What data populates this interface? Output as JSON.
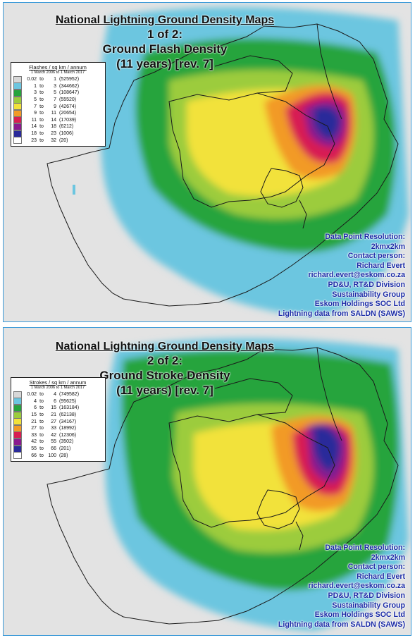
{
  "map_title": "National Lightning Ground Density Maps",
  "colors": {
    "sea": "#e3e3e3",
    "land": "#ffffff",
    "border": "#3a9ad8",
    "info_text": "#1a2aa6"
  },
  "panels": [
    {
      "id": "flash",
      "subtitle_1": "1 of 2:",
      "subtitle_2": "Ground Flash Density",
      "subtitle_3": "(11 years) [rev. 7]",
      "legend": {
        "header": "Flashes / sq km / annum",
        "period": "1 March 2006 to 1 March 2017",
        "items": [
          {
            "lo": "0.02",
            "to": "to",
            "hi": "1",
            "count": "(525952)",
            "color": "#d8d8d8"
          },
          {
            "lo": "1",
            "to": "to",
            "hi": "3",
            "count": "(344662)",
            "color": "#6cc6e0"
          },
          {
            "lo": "3",
            "to": "to",
            "hi": "5",
            "count": "(108647)",
            "color": "#25a43c"
          },
          {
            "lo": "5",
            "to": "to",
            "hi": "7",
            "count": "(55520)",
            "color": "#9ccc3c"
          },
          {
            "lo": "7",
            "to": "to",
            "hi": "9",
            "count": "(42674)",
            "color": "#f2e23a"
          },
          {
            "lo": "9",
            "to": "to",
            "hi": "11",
            "count": "(20654)",
            "color": "#f29a26"
          },
          {
            "lo": "11",
            "to": "to",
            "hi": "14",
            "count": "(17039)",
            "color": "#d81e52"
          },
          {
            "lo": "14",
            "to": "to",
            "hi": "18",
            "count": "(6212)",
            "color": "#8a1a8e"
          },
          {
            "lo": "18",
            "to": "to",
            "hi": "23",
            "count": "(1006)",
            "color": "#2a2a9a"
          },
          {
            "lo": "23",
            "to": "to",
            "hi": "32",
            "count": "(20)",
            "color": "#ffffff"
          }
        ]
      },
      "info": [
        "Data Point Resolution:",
        "2kmx2km",
        "Contact person:",
        "Richard Evert",
        "richard.evert@eskom.co.za",
        "PD&U, RT&D Division",
        "Sustainability Group",
        "Eskom Holdings SOC Ltd",
        "Lightning data from SALDN (SAWS)"
      ]
    },
    {
      "id": "stroke",
      "subtitle_1": "2 of 2:",
      "subtitle_2": "Ground Stroke Density",
      "subtitle_3": "(11 years) [rev. 7]",
      "legend": {
        "header": "Strokes / sq km / annum",
        "period": "1 March 2006 to 1 March 2017",
        "items": [
          {
            "lo": "0.02",
            "to": "to",
            "hi": "4",
            "count": "(749582)",
            "color": "#d8d8d8"
          },
          {
            "lo": "4",
            "to": "to",
            "hi": "6",
            "count": "(95625)",
            "color": "#6cc6e0"
          },
          {
            "lo": "6",
            "to": "to",
            "hi": "15",
            "count": "(163184)",
            "color": "#25a43c"
          },
          {
            "lo": "15",
            "to": "to",
            "hi": "21",
            "count": "(62138)",
            "color": "#9ccc3c"
          },
          {
            "lo": "21",
            "to": "to",
            "hi": "27",
            "count": "(34167)",
            "color": "#f2e23a"
          },
          {
            "lo": "27",
            "to": "to",
            "hi": "33",
            "count": "(18992)",
            "color": "#f29a26"
          },
          {
            "lo": "33",
            "to": "to",
            "hi": "42",
            "count": "(12306)",
            "color": "#d81e52"
          },
          {
            "lo": "42",
            "to": "to",
            "hi": "55",
            "count": "(3502)",
            "color": "#8a1a8e"
          },
          {
            "lo": "55",
            "to": "to",
            "hi": "66",
            "count": "(201)",
            "color": "#2a2a9a"
          },
          {
            "lo": "66",
            "to": "to",
            "hi": "100",
            "count": "(28)",
            "color": "#ffffff"
          }
        ]
      },
      "info": [
        "Data Point Resolution:",
        "2kmx2km",
        "Contact person:",
        "Richard Evert",
        "richard.evert@eskom.co.za",
        "PD&U, RT&D Division",
        "Sustainability Group",
        "Eskom Holdings SOC Ltd",
        "Lightning data from SALDN (SAWS)"
      ]
    }
  ]
}
